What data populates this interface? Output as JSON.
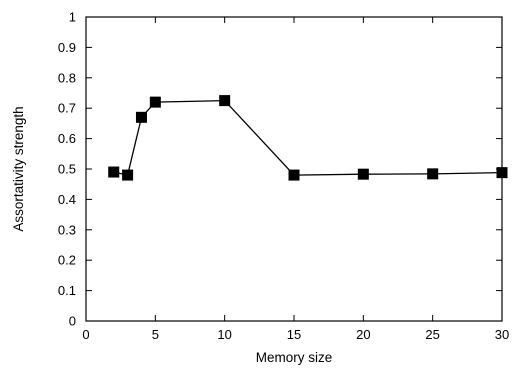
{
  "chart_data": {
    "type": "line",
    "title": "",
    "xlabel": "Memory size",
    "ylabel": "Assortativity strength",
    "xlim": [
      0,
      30
    ],
    "ylim": [
      0,
      1
    ],
    "xticks": [
      0,
      5,
      10,
      15,
      20,
      25,
      30
    ],
    "yticks": [
      0,
      0.1,
      0.2,
      0.3,
      0.4,
      0.5,
      0.6,
      0.7,
      0.8,
      0.9,
      1
    ],
    "grid": false,
    "legend": "none",
    "marker": "square",
    "color": "#000000",
    "series": [
      {
        "x": [
          2,
          3,
          4,
          5,
          10,
          15,
          20,
          25,
          30
        ],
        "y": [
          0.49,
          0.48,
          0.67,
          0.72,
          0.725,
          0.48,
          0.483,
          0.484,
          0.488
        ]
      }
    ]
  }
}
